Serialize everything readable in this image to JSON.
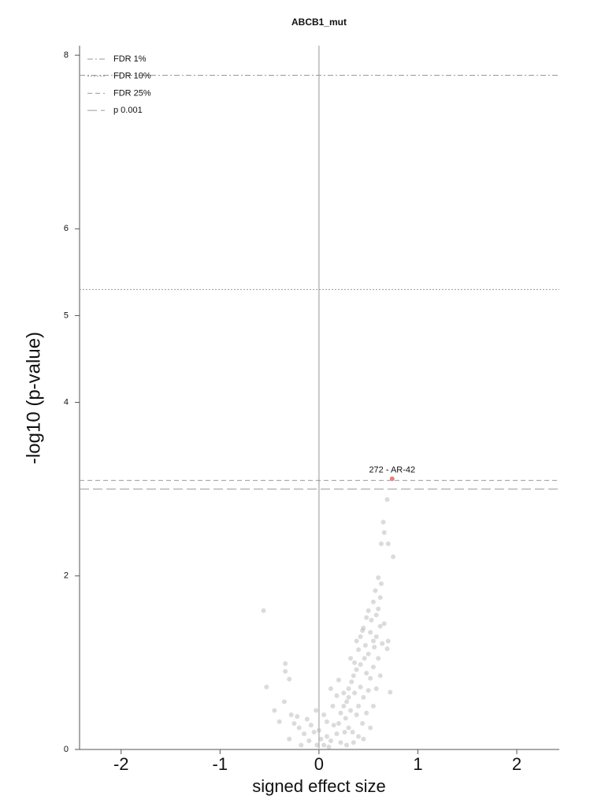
{
  "chart_data": {
    "type": "scatter",
    "title": "ABCB1_mut",
    "x_label": "signed effect size",
    "y_label": "-log10 (p-value)",
    "xlim": [
      -2.42,
      2.43
    ],
    "ylim": [
      0,
      8.11
    ],
    "xticks": [
      -2,
      -1,
      0,
      1,
      2
    ],
    "yticks": [
      0,
      2,
      4,
      5,
      6,
      8
    ],
    "color": "#b0b0b0",
    "x": [
      0.69,
      0.65,
      0.66,
      0.63,
      0.7,
      0.75,
      0.6,
      0.63,
      0.57,
      0.62,
      -0.56,
      0.5,
      0.53,
      0.58,
      0.55,
      0.48,
      0.6,
      0.45,
      0.52,
      0.44,
      0.58,
      0.62,
      0.66,
      0.69,
      0.64,
      0.56,
      0.5,
      0.46,
      0.4,
      0.42,
      0.38,
      0.48,
      0.52,
      0.55,
      0.6,
      0.35,
      0.33,
      0.3,
      0.36,
      0.42,
      0.45,
      0.5,
      0.72,
      0.28,
      0.25,
      0.32,
      0.38,
      0.22,
      0.27,
      0.2,
      0.15,
      0.3,
      0.34,
      0.4,
      0.45,
      0.18,
      0.12,
      0.08,
      0.05,
      0.02,
      0.1,
      0.22,
      0.28,
      0.35,
      -0.02,
      -0.05,
      -0.08,
      -0.1,
      -0.15,
      -0.2,
      -0.25,
      -0.22,
      -0.28,
      -0.18,
      -0.3,
      -0.12,
      -0.34,
      -0.34,
      -0.3,
      -0.53,
      -0.35,
      -0.45,
      -0.4,
      0.7,
      0.55,
      0.47,
      0.36,
      0.3,
      0.25,
      0.4,
      0.48,
      0.55,
      0.62,
      0.58,
      0.05,
      0.0,
      0.14,
      0.18,
      0.08,
      0.26,
      0.44,
      0.52,
      -0.03,
      0.12,
      0.2,
      0.32,
      0.38,
      0.42
    ],
    "values": [
      2.88,
      2.62,
      2.5,
      2.37,
      2.37,
      2.22,
      1.98,
      1.91,
      1.83,
      1.75,
      1.6,
      1.6,
      1.49,
      1.55,
      1.7,
      1.52,
      1.62,
      1.4,
      1.35,
      1.37,
      1.3,
      1.42,
      1.45,
      1.16,
      1.22,
      1.18,
      1.1,
      1.05,
      1.15,
      0.98,
      0.92,
      0.88,
      0.82,
      0.95,
      1.05,
      0.85,
      0.78,
      0.7,
      0.65,
      0.72,
      0.6,
      0.68,
      0.66,
      0.55,
      0.5,
      0.45,
      0.4,
      0.42,
      0.36,
      0.3,
      0.28,
      0.25,
      0.2,
      0.15,
      0.12,
      0.18,
      0.1,
      0.15,
      0.05,
      0.12,
      0.03,
      0.08,
      0.05,
      0.08,
      0.05,
      0.2,
      0.28,
      0.1,
      0.18,
      0.25,
      0.3,
      0.38,
      0.4,
      0.05,
      0.12,
      0.35,
      0.99,
      0.9,
      0.81,
      0.72,
      0.55,
      0.45,
      0.32,
      1.25,
      1.25,
      1.2,
      1.0,
      0.6,
      0.65,
      0.5,
      0.42,
      0.5,
      0.85,
      0.7,
      0.4,
      0.22,
      0.5,
      0.62,
      0.32,
      0.2,
      0.3,
      0.25,
      0.45,
      0.7,
      0.8,
      1.05,
      1.25,
      1.3
    ],
    "highlight": {
      "label": "272 - AR-42",
      "x": 0.74,
      "y": 3.12,
      "color": "#e8837a"
    },
    "thresholds": [
      {
        "name": "FDR 1%",
        "value": 7.77,
        "style": "dashdot"
      },
      {
        "name": "FDR 10%",
        "value": 5.3,
        "style": "dotted"
      },
      {
        "name": "FDR 25%",
        "value": 3.1,
        "style": "dashed"
      },
      {
        "name": "p 0.001",
        "value": 3.0,
        "style": "longdash"
      }
    ],
    "legend": "upper left"
  }
}
